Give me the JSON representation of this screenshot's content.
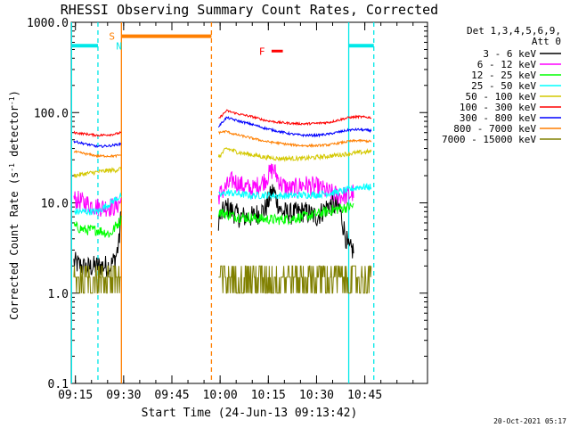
{
  "chart_data": {
    "type": "line",
    "title": "RHESSI Observing Summary Count Rates, Corrected",
    "xlabel": "Start Time (24-Jun-13 09:13:42)",
    "ylabel_parts": [
      "Corrected Count Rate (s",
      "-1",
      " detector",
      "-1",
      ")"
    ],
    "yscale": "log",
    "ylim": [
      0.1,
      1000
    ],
    "xlim_min": [
      13.7,
      124.5
    ],
    "y_ticks": [
      {
        "v": 0.1,
        "label": "0.1"
      },
      {
        "v": 1,
        "label": "1.0"
      },
      {
        "v": 10,
        "label": "10.0"
      },
      {
        "v": 100,
        "label": "100.0"
      },
      {
        "v": 1000,
        "label": "1000.0"
      }
    ],
    "x_ticks": [
      {
        "t": 15,
        "label": "09:15"
      },
      {
        "t": 30,
        "label": "09:30"
      },
      {
        "t": 45,
        "label": "09:45"
      },
      {
        "t": 60,
        "label": "10:00"
      },
      {
        "t": 75,
        "label": "10:15"
      },
      {
        "t": 90,
        "label": "10:30"
      },
      {
        "t": 105,
        "label": "10:45"
      }
    ],
    "detector_info": [
      "Det 1,3,4,5,6,9,",
      "Att 0"
    ],
    "series": [
      {
        "name": "3 - 6 keV",
        "color": "#000000",
        "segments": [
          [
            14.5,
            2.2
          ],
          [
            18,
            1.9
          ],
          [
            22,
            2
          ],
          [
            26,
            2
          ],
          [
            27.5,
            2.5
          ],
          [
            28.5,
            3.5
          ],
          [
            29.2,
            7.5
          ]
        ],
        "segments2": [
          [
            59.5,
            6.5
          ],
          [
            62,
            9
          ],
          [
            64,
            8
          ],
          [
            66,
            7
          ],
          [
            70,
            7
          ],
          [
            74,
            8.5
          ],
          [
            76.5,
            14
          ],
          [
            79,
            8
          ],
          [
            82,
            7.5
          ],
          [
            86,
            8
          ],
          [
            90,
            7
          ],
          [
            94,
            9.5
          ],
          [
            97,
            9
          ],
          [
            100,
            3
          ],
          [
            101.5,
            3
          ]
        ]
      },
      {
        "name": "6 - 12 keV",
        "color": "#ff00ff",
        "segments": [
          [
            14.5,
            11
          ],
          [
            18,
            10
          ],
          [
            22,
            9
          ],
          [
            26,
            9
          ],
          [
            27.5,
            9
          ],
          [
            29.2,
            10.5
          ]
        ],
        "segments2": [
          [
            59.5,
            12
          ],
          [
            62,
            15
          ],
          [
            64,
            18
          ],
          [
            66,
            16
          ],
          [
            70,
            14
          ],
          [
            74,
            18
          ],
          [
            76.5,
            24
          ],
          [
            79,
            16
          ],
          [
            82,
            14
          ],
          [
            86,
            16
          ],
          [
            90,
            15
          ],
          [
            94,
            13
          ],
          [
            97,
            12
          ],
          [
            100,
            12
          ],
          [
            101.5,
            13
          ]
        ]
      },
      {
        "name": "12 - 25 keV",
        "color": "#00ff00",
        "segments": [
          [
            14.5,
            5.5
          ],
          [
            18,
            5
          ],
          [
            22,
            5
          ],
          [
            26,
            4.5
          ],
          [
            27.5,
            5.5
          ],
          [
            29.2,
            6.5
          ]
        ],
        "segments2": [
          [
            59.5,
            8
          ],
          [
            62,
            7.5
          ],
          [
            64,
            7.2
          ],
          [
            66,
            7
          ],
          [
            70,
            6.8
          ],
          [
            74,
            6.6
          ],
          [
            78,
            6.5
          ],
          [
            82,
            6.7
          ],
          [
            86,
            7
          ],
          [
            90,
            7.5
          ],
          [
            94,
            8.2
          ],
          [
            97,
            8.6
          ],
          [
            100,
            9
          ],
          [
            101.5,
            9.2
          ]
        ]
      },
      {
        "name": "25 - 50 keV",
        "color": "#00ffff",
        "segments": [
          [
            14.5,
            8
          ],
          [
            18,
            8
          ],
          [
            22,
            8
          ],
          [
            26,
            10
          ],
          [
            27.5,
            11
          ],
          [
            29.2,
            12
          ]
        ],
        "segments2": [
          [
            59.5,
            12
          ],
          [
            62,
            13
          ],
          [
            64,
            12.8
          ],
          [
            66,
            12.5
          ],
          [
            70,
            12
          ],
          [
            74,
            12.2
          ],
          [
            78,
            12
          ],
          [
            82,
            12
          ],
          [
            86,
            12.2
          ],
          [
            90,
            12.3
          ],
          [
            94,
            12.8
          ],
          [
            97,
            13.2
          ],
          [
            100,
            14
          ],
          [
            103,
            15
          ],
          [
            107,
            15
          ]
        ]
      },
      {
        "name": "50 - 100 keV",
        "color": "#d4c800",
        "segments": [
          [
            14.5,
            20
          ],
          [
            18,
            21
          ],
          [
            22,
            22
          ],
          [
            26,
            23
          ],
          [
            27.5,
            23
          ],
          [
            29.2,
            24
          ]
        ],
        "segments2": [
          [
            59.5,
            32
          ],
          [
            62,
            40
          ],
          [
            64,
            38
          ],
          [
            66,
            36
          ],
          [
            70,
            34
          ],
          [
            74,
            32
          ],
          [
            78,
            31
          ],
          [
            82,
            31
          ],
          [
            86,
            31
          ],
          [
            90,
            32
          ],
          [
            94,
            33
          ],
          [
            97,
            34
          ],
          [
            100,
            35
          ],
          [
            103,
            36
          ],
          [
            107,
            37
          ]
        ]
      },
      {
        "name": "100 - 300 keV",
        "color": "#ff0000",
        "segments": [
          [
            14.5,
            60
          ],
          [
            18,
            58
          ],
          [
            22,
            56
          ],
          [
            26,
            57
          ],
          [
            27.5,
            58
          ],
          [
            29.2,
            60
          ]
        ],
        "segments2": [
          [
            59.5,
            85
          ],
          [
            62,
            105
          ],
          [
            64,
            100
          ],
          [
            66,
            96
          ],
          [
            70,
            90
          ],
          [
            74,
            82
          ],
          [
            78,
            78
          ],
          [
            82,
            76
          ],
          [
            86,
            75
          ],
          [
            90,
            76
          ],
          [
            94,
            78
          ],
          [
            97,
            83
          ],
          [
            100,
            88
          ],
          [
            103,
            90
          ],
          [
            107,
            88
          ]
        ]
      },
      {
        "name": "300 - 800 keV",
        "color": "#0000ff",
        "segments": [
          [
            14.5,
            48
          ],
          [
            18,
            45
          ],
          [
            22,
            42
          ],
          [
            26,
            43
          ],
          [
            27.5,
            44
          ],
          [
            29.2,
            45
          ]
        ],
        "segments2": [
          [
            59.5,
            70
          ],
          [
            62,
            88
          ],
          [
            64,
            84
          ],
          [
            66,
            80
          ],
          [
            70,
            74
          ],
          [
            74,
            67
          ],
          [
            78,
            62
          ],
          [
            82,
            58
          ],
          [
            86,
            56
          ],
          [
            90,
            56
          ],
          [
            94,
            58
          ],
          [
            97,
            61
          ],
          [
            100,
            64
          ],
          [
            103,
            65
          ],
          [
            107,
            63
          ]
        ]
      },
      {
        "name": "800 - 7000 keV",
        "color": "#ff7f00",
        "segments": [
          [
            14.5,
            37
          ],
          [
            18,
            35
          ],
          [
            22,
            33
          ],
          [
            26,
            33
          ],
          [
            27.5,
            33
          ],
          [
            29.2,
            34
          ]
        ],
        "segments2": [
          [
            59.5,
            60
          ],
          [
            62,
            62
          ],
          [
            64,
            58
          ],
          [
            66,
            56
          ],
          [
            70,
            52
          ],
          [
            74,
            48
          ],
          [
            78,
            46
          ],
          [
            82,
            44
          ],
          [
            86,
            43
          ],
          [
            90,
            43
          ],
          [
            94,
            44
          ],
          [
            97,
            46
          ],
          [
            100,
            48
          ],
          [
            103,
            49
          ],
          [
            107,
            48
          ]
        ]
      },
      {
        "name": "7000 - 15000 keV",
        "color": "#808000",
        "segments": [
          [
            14.5,
            1.5
          ],
          [
            18,
            1.5
          ],
          [
            22,
            1.5
          ],
          [
            26,
            1.5
          ],
          [
            27.5,
            1.5
          ],
          [
            29.2,
            1.5
          ]
        ],
        "segments2": [
          [
            59.5,
            1.8
          ],
          [
            62,
            1.5
          ],
          [
            66,
            1.2
          ],
          [
            70,
            1.0
          ],
          [
            74,
            1.0
          ],
          [
            78,
            1.0
          ],
          [
            82,
            1.0
          ],
          [
            86,
            1.2
          ],
          [
            90,
            1.5
          ],
          [
            94,
            1.5
          ],
          [
            97,
            1.5
          ],
          [
            100,
            1.5
          ],
          [
            103,
            1.5
          ],
          [
            107,
            1.5
          ]
        ]
      }
    ],
    "markers": {
      "saa_start_label": "S",
      "saa_end_label": "N",
      "flare_label": "F",
      "night_bars": [
        [
          13.7,
          22.0
        ],
        [
          100.0,
          107.8
        ]
      ],
      "saa_bar": [
        29.3,
        57.3
      ],
      "flare_bar": [
        76.0,
        79.5
      ],
      "lines": [
        {
          "t": 13.8,
          "color": "#00e8e8",
          "dash": false
        },
        {
          "t": 22.0,
          "color": "#00e8e8",
          "dash": true
        },
        {
          "t": 29.3,
          "color": "#ff7f00",
          "dash": false
        },
        {
          "t": 57.3,
          "color": "#ff7f00",
          "dash": true
        },
        {
          "t": 100.0,
          "color": "#00e8e8",
          "dash": false
        },
        {
          "t": 107.8,
          "color": "#00e8e8",
          "dash": true
        }
      ]
    }
  },
  "footer": {
    "date": "20-Oct-2021 05:17"
  }
}
